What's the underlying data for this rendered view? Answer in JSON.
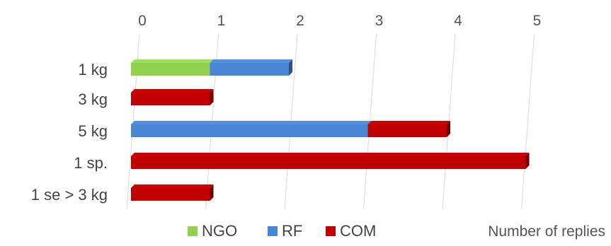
{
  "chart_data": {
    "type": "bar",
    "orientation": "horizontal",
    "stacked": true,
    "categories": [
      "1 kg",
      "3 kg",
      "5 kg",
      "1 sp.",
      "1 se > 3 kg"
    ],
    "series": [
      {
        "name": "NGO",
        "color": "#92d050",
        "values": [
          1,
          0,
          0,
          0,
          0
        ]
      },
      {
        "name": "RF",
        "color": "#4a86d4",
        "values": [
          1,
          0,
          3,
          0,
          0
        ]
      },
      {
        "name": "COM",
        "color": "#c00000",
        "values": [
          0,
          1,
          1,
          5,
          1
        ]
      }
    ],
    "xlim": [
      0,
      5
    ],
    "xticks": [
      "0",
      "1",
      "2",
      "3",
      "4",
      "5"
    ],
    "xlabel": "Number of replies",
    "legend_position": "bottom",
    "grid": true
  }
}
